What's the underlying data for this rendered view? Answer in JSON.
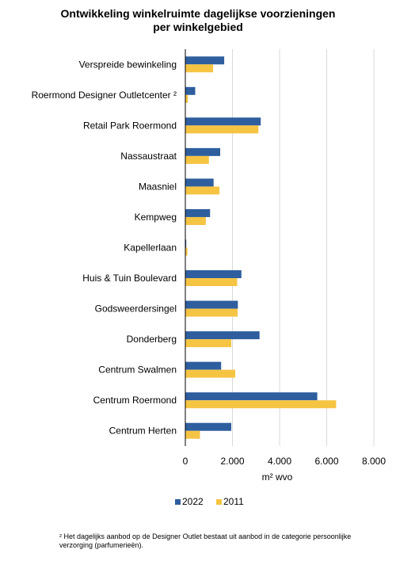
{
  "chart_data": {
    "type": "bar",
    "orientation": "horizontal",
    "title_lines": [
      "Ontwikkeling winkelruimte dagelijkse voorzieningen",
      "per winkelgebied"
    ],
    "xlabel": "m² wvo",
    "ylabel": "",
    "xlim": [
      0,
      8000
    ],
    "x_ticks": [
      0,
      2000,
      4000,
      6000,
      8000
    ],
    "x_tick_labels": [
      "0",
      "2.000",
      "4.000",
      "6.000",
      "8.000"
    ],
    "grid": "vertical",
    "legend_position": "bottom",
    "categories": [
      "Verspreide bewinkeling",
      "Roermond Designer Outletcenter ²",
      "Retail Park Roermond",
      "Nassaustraat",
      "Maasniel",
      "Kempweg",
      "Kapellerlaan",
      "Huis & Tuin Boulevard",
      "Godsweerdersingel",
      "Donderberg",
      "Centrum Swalmen",
      "Centrum Roermond",
      "Centrum Herten"
    ],
    "series": [
      {
        "name": "2022",
        "color": "#2E5E9E",
        "values": [
          1650,
          420,
          3200,
          1480,
          1200,
          1050,
          40,
          2380,
          2230,
          3150,
          1520,
          5600,
          1950
        ]
      },
      {
        "name": "2011",
        "color": "#F5C443",
        "values": [
          1180,
          110,
          3100,
          1000,
          1450,
          870,
          90,
          2200,
          2220,
          1950,
          2120,
          6400,
          620
        ]
      }
    ]
  },
  "footnote": "² Het dagelijks aanbod op de Designer Outlet bestaat uit aanbod in de categorie persoonlijke verzorging (parfumerieën)."
}
